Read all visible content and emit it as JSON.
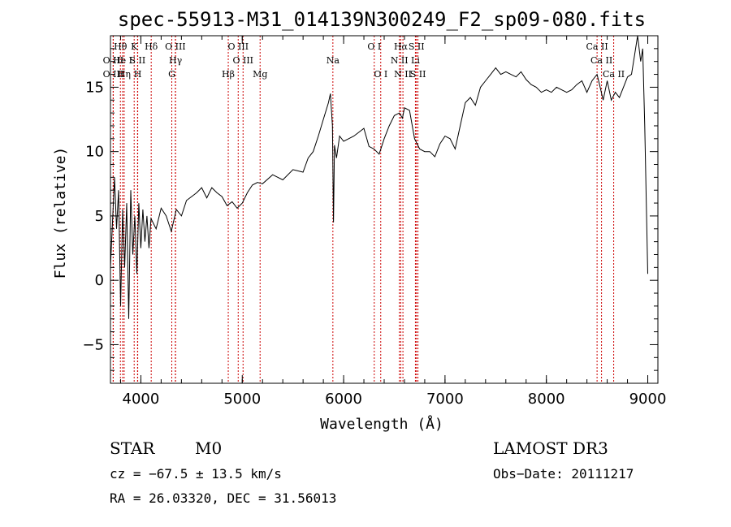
{
  "chart_data": {
    "type": "line",
    "title": "spec-55913-M31_014139N300249_F2_sp09-080.fits",
    "xlabel": "Wavelength (Å)",
    "ylabel": "Flux (relative)",
    "xlim": [
      3700,
      9100
    ],
    "ylim": [
      -8,
      19
    ],
    "xticks": [
      4000,
      5000,
      6000,
      7000,
      8000,
      9000
    ],
    "yticks": [
      -5,
      0,
      5,
      10,
      15
    ],
    "series": [
      {
        "name": "spectrum",
        "x": [
          3700,
          3740,
          3760,
          3780,
          3800,
          3820,
          3840,
          3860,
          3880,
          3900,
          3920,
          3940,
          3960,
          3980,
          4000,
          4020,
          4040,
          4060,
          4080,
          4100,
          4150,
          4200,
          4250,
          4300,
          4350,
          4400,
          4450,
          4500,
          4550,
          4600,
          4650,
          4700,
          4750,
          4800,
          4850,
          4900,
          4950,
          5000,
          5050,
          5100,
          5150,
          5200,
          5300,
          5400,
          5500,
          5600,
          5650,
          5700,
          5750,
          5800,
          5850,
          5870,
          5890,
          5900,
          5910,
          5930,
          5960,
          6000,
          6050,
          6100,
          6150,
          6200,
          6250,
          6300,
          6350,
          6400,
          6450,
          6500,
          6550,
          6580,
          6600,
          6650,
          6700,
          6750,
          6800,
          6850,
          6900,
          6950,
          7000,
          7050,
          7100,
          7150,
          7200,
          7250,
          7300,
          7350,
          7400,
          7450,
          7500,
          7550,
          7600,
          7650,
          7700,
          7750,
          7800,
          7850,
          7900,
          7950,
          8000,
          8050,
          8100,
          8150,
          8200,
          8250,
          8300,
          8350,
          8400,
          8450,
          8500,
          8530,
          8560,
          8600,
          8640,
          8680,
          8720,
          8760,
          8800,
          8840,
          8870,
          8900,
          8930,
          8950,
          8970,
          9000
        ],
        "values": [
          1.0,
          8.0,
          4.0,
          7.0,
          -2.0,
          5.5,
          1.0,
          6.0,
          -3.0,
          7.0,
          2.0,
          5.0,
          0.5,
          6.0,
          2.5,
          5.5,
          3.0,
          5.0,
          2.5,
          4.8,
          4.0,
          5.6,
          5.0,
          3.8,
          5.5,
          5.0,
          6.2,
          6.5,
          6.8,
          7.2,
          6.4,
          7.2,
          6.8,
          6.5,
          5.8,
          6.1,
          5.6,
          6.0,
          6.8,
          7.4,
          7.6,
          7.5,
          8.2,
          7.8,
          8.6,
          8.4,
          9.5,
          10.0,
          11.2,
          12.5,
          13.8,
          14.5,
          12.0,
          4.5,
          10.5,
          9.5,
          11.2,
          10.8,
          11.0,
          11.2,
          11.5,
          11.8,
          10.4,
          10.2,
          9.8,
          11.0,
          12.0,
          12.8,
          13.0,
          12.6,
          13.4,
          13.2,
          11.0,
          10.2,
          10.0,
          10.0,
          9.6,
          10.6,
          11.2,
          11.0,
          10.2,
          12.0,
          13.8,
          14.2,
          13.6,
          15.0,
          15.5,
          16.0,
          16.5,
          16.0,
          16.2,
          16.0,
          15.8,
          16.2,
          15.6,
          15.2,
          15.0,
          14.6,
          14.8,
          14.6,
          15.0,
          14.8,
          14.6,
          14.8,
          15.2,
          15.5,
          14.6,
          15.5,
          16.0,
          15.0,
          14.0,
          15.5,
          14.0,
          14.6,
          14.2,
          15.0,
          15.8,
          16.0,
          17.5,
          19.0,
          17.0,
          18.0,
          12.0,
          0.5
        ]
      }
    ],
    "lines": [
      {
        "name": "O III",
        "wl": 3727,
        "row": 1
      },
      {
        "name": "O III",
        "wl": 3727,
        "row": 2
      },
      {
        "name": "Hθ",
        "wl": 3798,
        "row": 0
      },
      {
        "name": "He I",
        "wl": 3820,
        "row": 1
      },
      {
        "name": "Hη",
        "wl": 3835,
        "row": 2
      },
      {
        "name": "K",
        "wl": 3934,
        "row": 0
      },
      {
        "name": "S II",
        "wl": 3967,
        "row": 1
      },
      {
        "name": "H",
        "wl": 3969,
        "row": 2
      },
      {
        "name": "Hδ",
        "wl": 4102,
        "row": 0
      },
      {
        "name": "G",
        "wl": 4305,
        "row": 2
      },
      {
        "name": "O III",
        "wl": 4340,
        "row": 0
      },
      {
        "name": "Hγ",
        "wl": 4342,
        "row": 1
      },
      {
        "name": "Hβ",
        "wl": 4862,
        "row": 2
      },
      {
        "name": "O III",
        "wl": 4960,
        "row": 0
      },
      {
        "name": "O III",
        "wl": 5008,
        "row": 1
      },
      {
        "name": "Mg",
        "wl": 5176,
        "row": 2
      },
      {
        "name": "Na",
        "wl": 5894,
        "row": 1
      },
      {
        "name": "O I",
        "wl": 6302,
        "row": 0
      },
      {
        "name": "O I",
        "wl": 6366,
        "row": 2
      },
      {
        "name": "Hα",
        "wl": 6564,
        "row": 0
      },
      {
        "name": "N II",
        "wl": 6550,
        "row": 1
      },
      {
        "name": "N II",
        "wl": 6585,
        "row": 2
      },
      {
        "name": "S II",
        "wl": 6718,
        "row": 0
      },
      {
        "name": "Li",
        "wl": 6708,
        "row": 1
      },
      {
        "name": "S II",
        "wl": 6733,
        "row": 2
      },
      {
        "name": "Ca II",
        "wl": 8500,
        "row": 0
      },
      {
        "name": "Ca II",
        "wl": 8544,
        "row": 1
      },
      {
        "name": "Ca II",
        "wl": 8664,
        "row": 2
      }
    ]
  },
  "info": {
    "object_class": "STAR",
    "subclass": "M0",
    "survey": "LAMOST DR3",
    "cz": "cz = −67.5 ± 13.5 km/s",
    "obs_date": "Obs−Date: 20111217",
    "coords": "RA =  26.03320, DEC =  31.56013"
  },
  "colors": {
    "line": "#000000",
    "marker": "#cc0000"
  }
}
